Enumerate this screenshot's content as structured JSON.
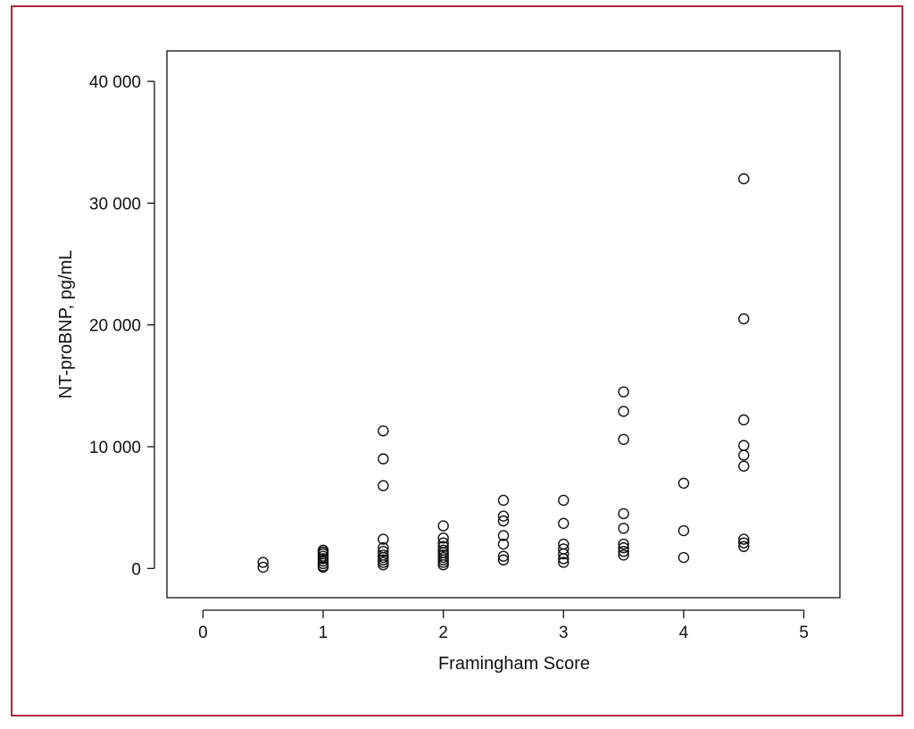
{
  "colors": {
    "frame_border": "#b4243a",
    "axis": "#111111",
    "marker_stroke": "#111111"
  },
  "chart_data": {
    "type": "scatter",
    "xlabel": "Framingham Score",
    "ylabel": "NT-proBNP, pg/mL",
    "xlim": [
      -0.3,
      5.3
    ],
    "ylim": [
      -2400,
      42500
    ],
    "x_ticks": [
      0,
      1,
      2,
      3,
      4,
      5
    ],
    "x_tick_labels": [
      "0",
      "1",
      "2",
      "3",
      "4",
      "5"
    ],
    "y_ticks": [
      0,
      10000,
      20000,
      30000,
      40000
    ],
    "y_tick_labels": [
      "0",
      "10 000",
      "20 000",
      "30 000",
      "40 000"
    ],
    "grid": false,
    "legend": "none",
    "marker": "open-circle",
    "points": [
      {
        "x": 0.5,
        "y": 500
      },
      {
        "x": 0.5,
        "y": 100
      },
      {
        "x": 1,
        "y": 1500
      },
      {
        "x": 1,
        "y": 1350
      },
      {
        "x": 1,
        "y": 1200
      },
      {
        "x": 1,
        "y": 1000
      },
      {
        "x": 1,
        "y": 800
      },
      {
        "x": 1,
        "y": 600
      },
      {
        "x": 1,
        "y": 400
      },
      {
        "x": 1,
        "y": 200
      },
      {
        "x": 1,
        "y": 100
      },
      {
        "x": 1.5,
        "y": 11300
      },
      {
        "x": 1.5,
        "y": 9000
      },
      {
        "x": 1.5,
        "y": 6800
      },
      {
        "x": 1.5,
        "y": 2400
      },
      {
        "x": 1.5,
        "y": 1700
      },
      {
        "x": 1.5,
        "y": 1400
      },
      {
        "x": 1.5,
        "y": 1100
      },
      {
        "x": 1.5,
        "y": 900
      },
      {
        "x": 1.5,
        "y": 700
      },
      {
        "x": 1.5,
        "y": 500
      },
      {
        "x": 1.5,
        "y": 300
      },
      {
        "x": 2,
        "y": 3500
      },
      {
        "x": 2,
        "y": 2500
      },
      {
        "x": 2,
        "y": 2100
      },
      {
        "x": 2,
        "y": 1800
      },
      {
        "x": 2,
        "y": 1500
      },
      {
        "x": 2,
        "y": 1300
      },
      {
        "x": 2,
        "y": 1100
      },
      {
        "x": 2,
        "y": 900
      },
      {
        "x": 2,
        "y": 700
      },
      {
        "x": 2,
        "y": 500
      },
      {
        "x": 2,
        "y": 300
      },
      {
        "x": 2.5,
        "y": 5600
      },
      {
        "x": 2.5,
        "y": 4300
      },
      {
        "x": 2.5,
        "y": 3900
      },
      {
        "x": 2.5,
        "y": 2700
      },
      {
        "x": 2.5,
        "y": 2000
      },
      {
        "x": 2.5,
        "y": 1000
      },
      {
        "x": 2.5,
        "y": 700
      },
      {
        "x": 3,
        "y": 5600
      },
      {
        "x": 3,
        "y": 3700
      },
      {
        "x": 3,
        "y": 2000
      },
      {
        "x": 3,
        "y": 1600
      },
      {
        "x": 3,
        "y": 1200
      },
      {
        "x": 3,
        "y": 800
      },
      {
        "x": 3,
        "y": 500
      },
      {
        "x": 3.5,
        "y": 14500
      },
      {
        "x": 3.5,
        "y": 12900
      },
      {
        "x": 3.5,
        "y": 10600
      },
      {
        "x": 3.5,
        "y": 4500
      },
      {
        "x": 3.5,
        "y": 3300
      },
      {
        "x": 3.5,
        "y": 2000
      },
      {
        "x": 3.5,
        "y": 1700
      },
      {
        "x": 3.5,
        "y": 1400
      },
      {
        "x": 3.5,
        "y": 1100
      },
      {
        "x": 4,
        "y": 7000
      },
      {
        "x": 4,
        "y": 3100
      },
      {
        "x": 4,
        "y": 900
      },
      {
        "x": 4.5,
        "y": 32000
      },
      {
        "x": 4.5,
        "y": 20500
      },
      {
        "x": 4.5,
        "y": 12200
      },
      {
        "x": 4.5,
        "y": 10100
      },
      {
        "x": 4.5,
        "y": 9300
      },
      {
        "x": 4.5,
        "y": 8400
      },
      {
        "x": 4.5,
        "y": 2400
      },
      {
        "x": 4.5,
        "y": 2100
      },
      {
        "x": 4.5,
        "y": 1800
      }
    ]
  }
}
